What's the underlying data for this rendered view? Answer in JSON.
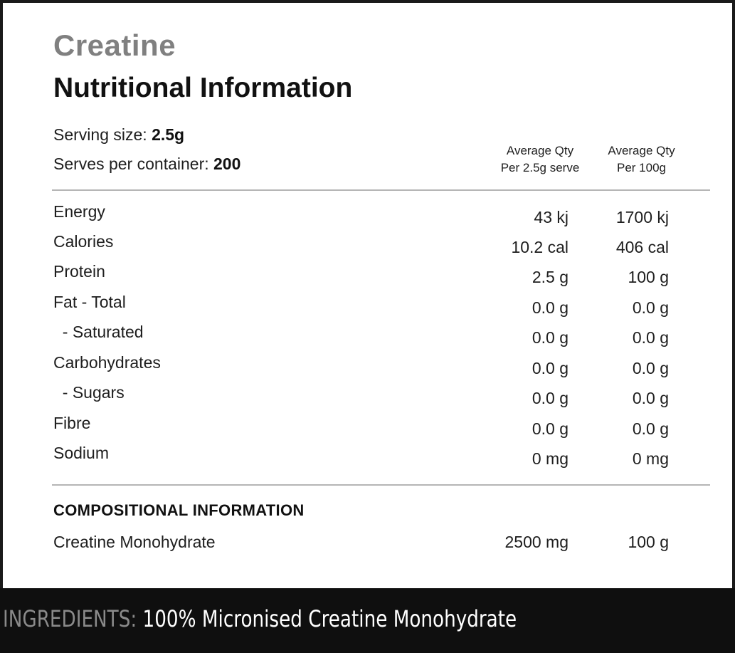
{
  "product": "Creatine",
  "title": "Nutritional Information",
  "serving": {
    "size_label": "Serving size:",
    "size_value": "2.5g",
    "count_label": "Serves per container:",
    "count_value": "200"
  },
  "columns": {
    "serve_line1": "Average Qty",
    "serve_line2": "Per 2.5g serve",
    "per100_line1": "Average Qty",
    "per100_line2": "Per 100g"
  },
  "nutrients": [
    {
      "name": "Energy",
      "serve": "43 kj",
      "per100": "1700 kj"
    },
    {
      "name": "Calories",
      "serve": "10.2 cal",
      "per100": "406 cal"
    },
    {
      "name": "Protein",
      "serve": "2.5 g",
      "per100": "100 g"
    },
    {
      "name": "Fat - Total",
      "serve": "0.0 g",
      "per100": "0.0 g"
    },
    {
      "name": "  - Saturated",
      "serve": "0.0 g",
      "per100": "0.0 g"
    },
    {
      "name": "Carbohydrates",
      "serve": "0.0 g",
      "per100": "0.0 g"
    },
    {
      "name": "  - Sugars",
      "serve": "0.0 g",
      "per100": "0.0 g"
    },
    {
      "name": "Fibre",
      "serve": "0.0 g",
      "per100": "0.0 g"
    },
    {
      "name": "Sodium",
      "serve": "0 mg",
      "per100": "0 mg"
    }
  ],
  "composition": {
    "heading": "COMPOSITIONAL INFORMATION",
    "name": "Creatine Monohydrate",
    "serve": "2500 mg",
    "per100": "100 g"
  },
  "ingredients": {
    "label": "INGREDIENTS:",
    "text": " 100% Micronised Creatine Monohydrate"
  }
}
